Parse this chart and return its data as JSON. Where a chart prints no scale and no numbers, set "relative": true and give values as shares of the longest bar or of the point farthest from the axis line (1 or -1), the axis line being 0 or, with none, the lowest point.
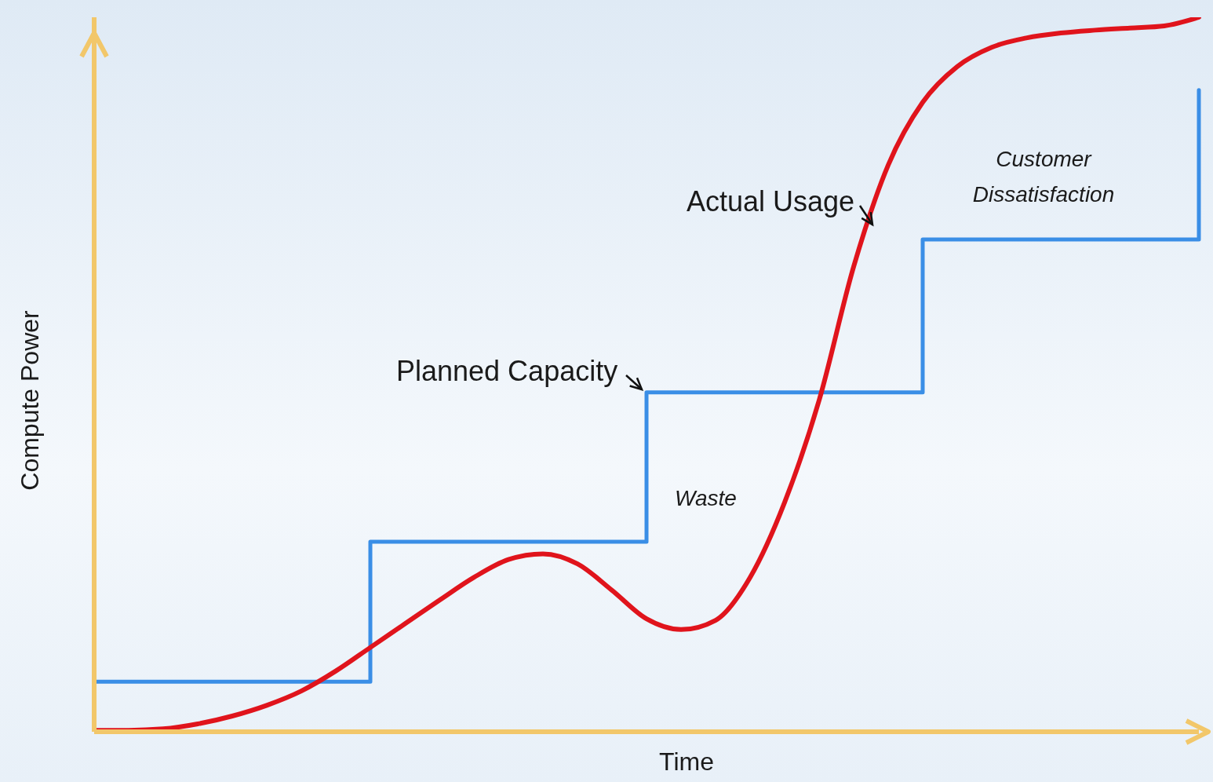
{
  "chart_data": {
    "type": "line",
    "relative": true,
    "xlabel": "Time",
    "ylabel": "Compute Power",
    "categories": [
      null,
      null,
      null,
      null,
      null,
      null,
      null,
      null,
      null,
      null,
      null,
      null,
      null,
      null,
      null,
      null,
      null,
      null,
      null,
      null,
      null,
      null,
      null,
      null,
      null,
      null,
      null,
      null,
      null,
      null,
      null,
      null,
      null
    ],
    "series": [
      {
        "name": "Planned Capacity",
        "type": "step",
        "color": "#3a8ee6",
        "values": [
          0.07,
          0.07,
          0.07,
          0.07,
          0.07,
          0.07,
          0.07,
          0.07,
          0.266,
          0.266,
          0.266,
          0.266,
          0.266,
          0.266,
          0.266,
          0.266,
          0.475,
          0.475,
          0.475,
          0.475,
          0.475,
          0.475,
          0.475,
          0.475,
          0.689,
          0.689,
          0.689,
          0.689,
          0.689,
          0.689,
          0.689,
          0.689,
          0.898
        ]
      },
      {
        "name": "Actual Usage",
        "type": "line",
        "color": "#e0141c",
        "values": [
          0.002,
          0.002,
          0.004,
          0.011,
          0.022,
          0.037,
          0.057,
          0.085,
          0.118,
          0.151,
          0.184,
          0.216,
          0.241,
          0.249,
          0.235,
          0.198,
          0.158,
          0.143,
          0.156,
          0.216,
          0.321,
          0.464,
          0.651,
          0.793,
          0.881,
          0.931,
          0.958,
          0.971,
          0.978,
          0.982,
          0.985,
          0.988,
          1
        ]
      }
    ],
    "annotations": [
      "Waste",
      "Customer Dissatisfaction"
    ]
  }
}
